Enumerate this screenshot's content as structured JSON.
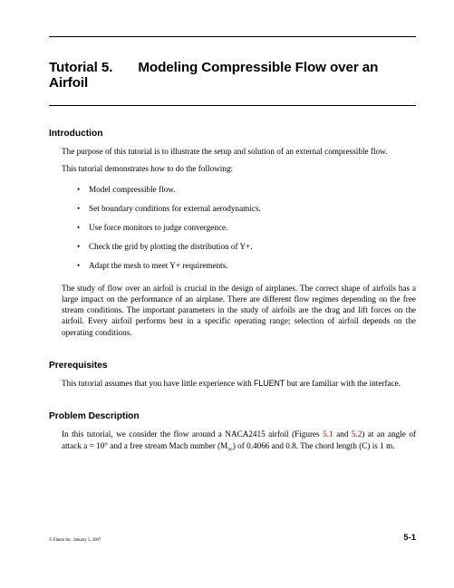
{
  "chapter": {
    "number_label": "Tutorial 5.",
    "title": "Modeling Compressible Flow over an Airfoil"
  },
  "sections": {
    "intro": {
      "heading": "Introduction",
      "para1": "The purpose of this tutorial is to illustrate the setup and solution of an external compressible flow.",
      "para2": "This tutorial demonstrates how to do the following:",
      "bullets": [
        "Model compressible flow.",
        "Set boundary conditions for external aerodynamics.",
        "Use force monitors to judge convergence.",
        "Check the grid by plotting the distribution of Y+.",
        "Adapt the mesh to meet Y+ requirements."
      ],
      "para3": "The study of flow over an airfoil is crucial in the design of airplanes. The correct shape of airfoils has a large impact on the performance of an airplane. There are different flow regimes depending on the free stream conditions. The important parameters in the study of airfoils are the drag and lift forces on the airfoil. Every airfoil performs best in a specific operating range; selection of airfoil depends on the operating conditions."
    },
    "prereq": {
      "heading": "Prerequisites",
      "text_before": "This tutorial assumes that you have little experience with ",
      "fluent": "FLUENT",
      "text_after": " but are familiar with the interface."
    },
    "problem": {
      "heading": "Problem Description",
      "text_a": "In this tutorial, we consider the flow around a NACA2415 airfoil (Figures ",
      "figref1": "5.1",
      "text_b": " and ",
      "figref2": "5.2",
      "text_c": ") at an angle of attack a = 10° and a free stream Mach number (M",
      "text_d": ") of 0.4066 and 0.8. The chord length (C) is 1 m.",
      "infinity": "∞"
    }
  },
  "footer": {
    "copyright": "© Fluent Inc. January 5, 2007",
    "pagenum": "5-1"
  }
}
